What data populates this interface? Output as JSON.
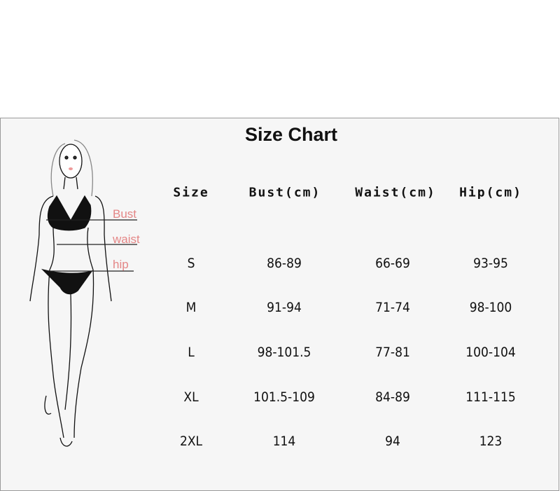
{
  "title": "Size Chart",
  "figure_labels": {
    "bust": "Bust",
    "waist": "waist",
    "hip": "hip"
  },
  "table": {
    "headers": [
      "Size",
      "Bust(cm)",
      "Waist(cm)",
      "Hip(cm)"
    ],
    "rows": [
      [
        "S",
        "86-89",
        "66-69",
        "93-95"
      ],
      [
        "M",
        "91-94",
        "71-74",
        "98-100"
      ],
      [
        "L",
        "98-101.5",
        "77-81",
        "100-104"
      ],
      [
        "XL",
        "101.5-109",
        "84-89",
        "111-115"
      ],
      [
        "2XL",
        "114",
        "94",
        "123"
      ]
    ]
  },
  "colors": {
    "label": "#e48686",
    "background": "#f6f6f6"
  }
}
